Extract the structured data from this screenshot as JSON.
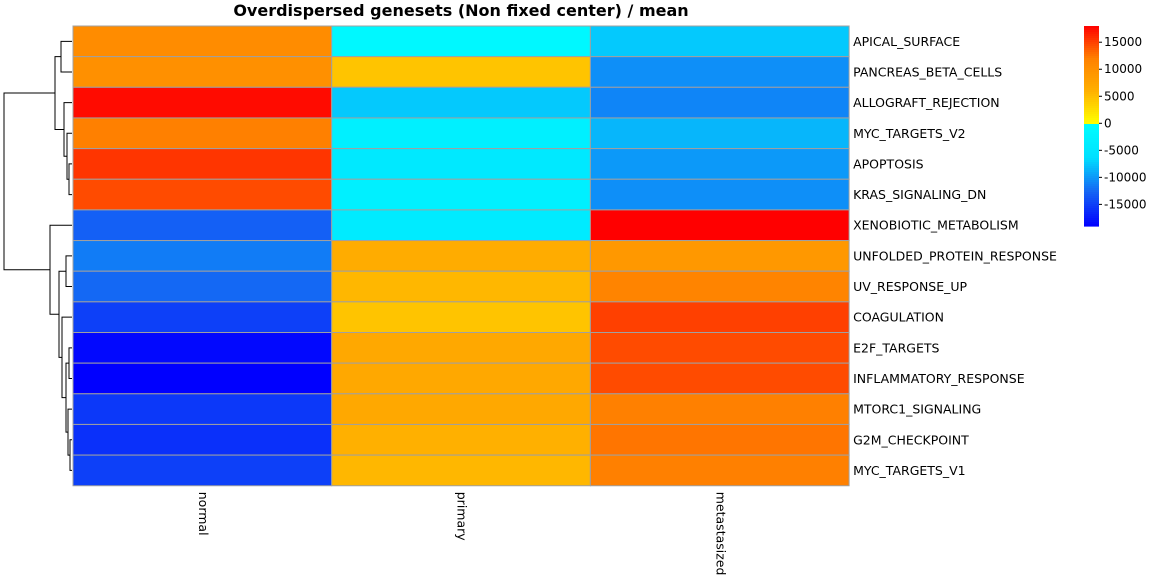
{
  "chart_data": {
    "type": "heatmap",
    "title": "Overdispersed genesets (Non fixed center) / mean",
    "columns": [
      "normal",
      "primary",
      "metastasized"
    ],
    "rows": [
      "APICAL_SURFACE",
      "PANCREAS_BETA_CELLS",
      "ALLOGRAFT_REJECTION",
      "MYC_TARGETS_V2",
      "APOPTOSIS",
      "KRAS_SIGNALING_DN",
      "XENOBIOTIC_METABOLISM",
      "UNFOLDED_PROTEIN_RESPONSE",
      "UV_RESPONSE_UP",
      "COAGULATION",
      "E2F_TARGETS",
      "INFLAMMATORY_RESPONSE",
      "MTORC1_SIGNALING",
      "G2M_CHECKPOINT",
      "MYC_TARGETS_V1"
    ],
    "values": [
      [
        10500,
        -1500,
        -7500
      ],
      [
        10000,
        4500,
        -10500
      ],
      [
        17500,
        -7500,
        -11000
      ],
      [
        12000,
        -3000,
        -8500
      ],
      [
        15500,
        -4500,
        -10000
      ],
      [
        14500,
        -3000,
        -10500
      ],
      [
        -13000,
        -4000,
        18000
      ],
      [
        -11500,
        6500,
        9000
      ],
      [
        -12500,
        5500,
        11500
      ],
      [
        -15000,
        4500,
        15000
      ],
      [
        -18500,
        7000,
        14500
      ],
      [
        -19000,
        7000,
        14500
      ],
      [
        -15500,
        7000,
        12000
      ],
      [
        -16000,
        6000,
        12500
      ],
      [
        -15000,
        5500,
        12000
      ]
    ],
    "legend": {
      "ticks": [
        15000,
        10000,
        5000,
        0,
        -5000,
        -10000,
        -15000
      ],
      "range": [
        -19000,
        18000
      ],
      "placement": "right"
    },
    "color_scale": {
      "negative": [
        "#0000ff",
        "#1565f4",
        "#00e0ff"
      ],
      "zero": "#00ffff",
      "positive": [
        "#ffff00",
        "#ffb000",
        "#ff8000",
        "#ff0000"
      ]
    },
    "dendrogram": "rows",
    "cell_border_color": "#a0a0a0"
  }
}
